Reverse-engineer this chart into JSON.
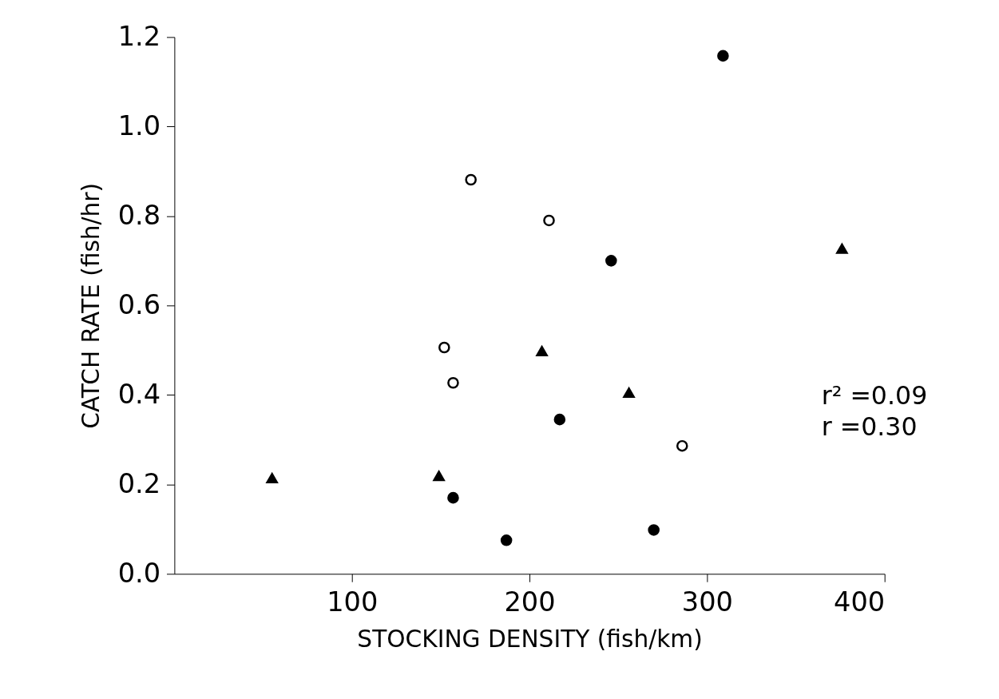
{
  "chart_data": {
    "type": "scatter",
    "xlabel": "STOCKING DENSITY (fish/km)",
    "ylabel": "CATCH RATE (fish/hr)",
    "xlim": [
      0,
      400
    ],
    "xticks": [
      100,
      200,
      300,
      400
    ],
    "ylim": [
      0,
      1.2
    ],
    "yticks": [
      {
        "value": 0,
        "label": "0.0"
      },
      0.2,
      0.4,
      0.6,
      0.8,
      {
        "value": 1,
        "label": "1.0"
      },
      1.2
    ],
    "grid": false,
    "annotations": [
      "r² =0.09",
      "r =0.30"
    ],
    "series": [
      {
        "color": "#000000",
        "marker": "circle",
        "x": [
          157,
          187,
          217,
          246,
          270,
          309
        ],
        "values": [
          0.17,
          0.075,
          0.345,
          0.7,
          0.098,
          1.158
        ]
      },
      {
        "color": "#ffffff",
        "marker": "circle",
        "x": [
          167,
          211,
          152,
          157,
          286
        ],
        "values": [
          0.881,
          0.79,
          0.506,
          0.427,
          0.286
        ]
      },
      {
        "color": "#000000",
        "marker": "triangle",
        "x": [
          55,
          149,
          207,
          256,
          376
        ],
        "values": [
          0.214,
          0.219,
          0.498,
          0.405,
          0.727
        ]
      }
    ]
  }
}
